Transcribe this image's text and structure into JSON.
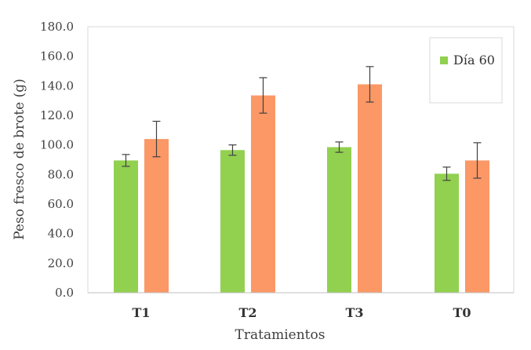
{
  "chart_data": {
    "type": "bar",
    "title": "",
    "xlabel": "Tratamientos",
    "ylabel": "Peso fresco de brote  (g)",
    "ylim": [
      0,
      180
    ],
    "yticks": [
      "0.0",
      "20.0",
      "40.0",
      "60.0",
      "80.0",
      "100.0",
      "120.0",
      "140.0",
      "160.0",
      "180.0"
    ],
    "grid": false,
    "legend_position": "top-right",
    "categories": [
      "T1",
      "T2",
      "T3",
      "T0"
    ],
    "series": [
      {
        "name": "Día 60",
        "color": "#92d050",
        "values": [
          89.5,
          96.5,
          98.5,
          80.5
        ],
        "errors": [
          4.0,
          3.5,
          3.5,
          4.5
        ]
      },
      {
        "color": "#fb9866",
        "values": [
          104.0,
          133.5,
          141.0,
          89.5
        ],
        "errors": [
          12.0,
          12.0,
          12.0,
          12.0
        ]
      }
    ]
  }
}
